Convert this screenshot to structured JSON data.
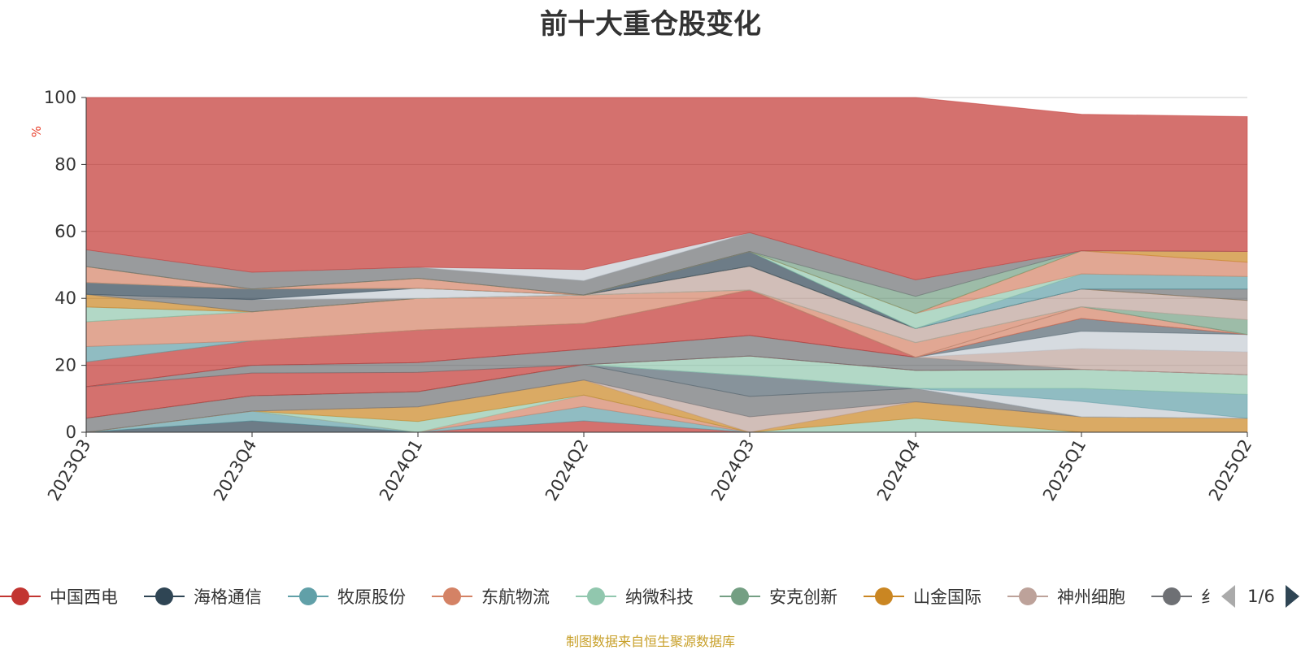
{
  "chart_data": {
    "type": "area",
    "title": "前十大重仓股变化",
    "ylabel": "%",
    "ylim": [
      0,
      100
    ],
    "yticks": [
      0,
      20,
      40,
      60,
      80,
      100
    ],
    "categories": [
      "2023Q3",
      "2023Q4",
      "2024Q1",
      "2024Q2",
      "2024Q3",
      "2024Q4",
      "2025Q1",
      "2025Q2"
    ],
    "stacked": true,
    "series": [
      {
        "name": "中国西电",
        "color": "#c23531",
        "values": [
          0,
          0,
          0,
          3.4,
          0,
          0,
          0,
          0
        ]
      },
      {
        "name": "海格通信",
        "color": "#2f4554",
        "values": [
          0,
          3.4,
          0,
          0,
          0,
          0,
          0,
          0
        ]
      },
      {
        "name": "牧原股份",
        "color": "#61a0a8",
        "values": [
          0,
          2.9,
          0,
          4.3,
          0,
          0,
          0,
          0
        ]
      },
      {
        "name": "东航物流",
        "color": "#d48265",
        "values": [
          0,
          0,
          0,
          3.4,
          0,
          0,
          0,
          0
        ]
      },
      {
        "name": "纳微科技",
        "color": "#91c7ae",
        "values": [
          0,
          0,
          3.2,
          0,
          0,
          4.2,
          0,
          0
        ]
      },
      {
        "name": "安克创新",
        "color": "#749f83",
        "values": [
          0,
          0,
          0,
          0,
          0,
          0,
          0,
          0
        ]
      },
      {
        "name": "山金国际",
        "color": "#ca8622",
        "values": [
          0,
          0,
          4.4,
          4.5,
          0,
          4.9,
          4.6,
          4.2
        ]
      },
      {
        "name": "神州细胞",
        "color": "#bda29a",
        "values": [
          0,
          0,
          0,
          0,
          4.6,
          0,
          0,
          0
        ]
      },
      {
        "name": "",
        "color": "#6e7074",
        "values": [
          4.2,
          4.6,
          4.5,
          4.6,
          6.1,
          4.0,
          0,
          0
        ]
      },
      {
        "name": "",
        "color": "#546570",
        "values": [
          9.6,
          7.0,
          5.8,
          5.0,
          6.2,
          0,
          0,
          0
        ]
      },
      {
        "name": "",
        "color": "#c4ccd3",
        "values": [
          0,
          0,
          0,
          0,
          0,
          0,
          4.6,
          0
        ]
      },
      {
        "name": "",
        "color": "#61a0a8",
        "values": [
          0,
          0,
          0,
          0,
          0,
          0,
          3.9,
          7.1
        ]
      },
      {
        "name": "",
        "color": "#91c7ae",
        "values": [
          0,
          0,
          0,
          0,
          12.2,
          5.4,
          5.7,
          5.9
        ]
      },
      {
        "name": "",
        "color": "#bda29a",
        "values": [
          0,
          0,
          0,
          0,
          0,
          3.9,
          6.7,
          6.8
        ]
      },
      {
        "name": "",
        "color": "#c4ccd3",
        "values": [
          0,
          0,
          0,
          0,
          0,
          0,
          5.3,
          5.2
        ]
      },
      {
        "name": "",
        "color": "#c23531",
        "values": [
          7.4,
          0,
          0,
          0,
          0,
          0,
          0,
          0
        ]
      },
      {
        "name": "",
        "color": "#546570",
        "values": [
          0,
          0,
          0,
          0,
          0,
          0,
          3.8,
          0
        ]
      },
      {
        "name": "",
        "color": "#61a0a8",
        "values": [
          4.6,
          0,
          0,
          0,
          0,
          0,
          0,
          0
        ]
      },
      {
        "name": "",
        "color": "#d48265",
        "values": [
          7.4,
          0,
          0,
          0,
          0,
          0,
          0,
          0
        ]
      },
      {
        "name": "",
        "color": "#91c7ae",
        "values": [
          4.4,
          0,
          0,
          0,
          0,
          0,
          0,
          0
        ]
      },
      {
        "name": "",
        "color": "#6e7074",
        "values": [
          0,
          0,
          0,
          0,
          0,
          0,
          0,
          0
        ]
      },
      {
        "name": "",
        "color": "#749f83",
        "values": [
          0,
          0,
          0,
          0,
          0,
          0,
          0,
          4.4
        ]
      },
      {
        "name": "",
        "color": "#ca8622",
        "values": [
          3.8,
          0,
          0,
          0,
          0,
          0,
          0,
          3.2
        ]
      },
      {
        "name": "",
        "color": "#c23531",
        "values": [
          0,
          0,
          0,
          0,
          9.2,
          0,
          0,
          0
        ]
      },
      {
        "name": "",
        "color": "#c4ccd3",
        "values": [
          0,
          0,
          0,
          0,
          0,
          0,
          0,
          0
        ]
      },
      {
        "name": "",
        "color": "#6e7074",
        "values": [
          0,
          0,
          0,
          0,
          0,
          0,
          0,
          0
        ]
      },
      {
        "name": "",
        "color": "#2f4554",
        "values": [
          3.5,
          0,
          0,
          0,
          0,
          0,
          0,
          0
        ]
      },
      {
        "name": "",
        "color": "#d48265",
        "values": [
          4.8,
          0,
          0,
          0,
          0,
          0,
          0,
          0
        ]
      },
      {
        "name": "",
        "color": "#6e7074",
        "values": [
          5.0,
          0,
          0,
          0,
          0,
          0,
          0,
          0
        ]
      },
      {
        "name": "",
        "color": "#c23531",
        "values": [
          45.3,
          0,
          0,
          0,
          0,
          0,
          0,
          0
        ]
      }
    ]
  },
  "bands": [
    {
      "color": "#c23531",
      "bottom": [
        0,
        0,
        0,
        0,
        0,
        0,
        0,
        0
      ],
      "top": [
        0,
        0,
        0,
        3.4,
        0,
        0,
        0,
        0
      ]
    },
    {
      "color": "#2f4554",
      "bottom": [
        0,
        0,
        0,
        0,
        0,
        0,
        0,
        0
      ],
      "top": [
        0,
        3.4,
        0,
        0,
        0,
        0,
        0,
        0
      ]
    },
    {
      "color": "#61a0a8",
      "bottom": [
        0,
        3.4,
        0,
        3.4,
        0,
        0,
        0,
        0
      ],
      "top": [
        0,
        6.3,
        0,
        7.7,
        0,
        0,
        0,
        0
      ]
    },
    {
      "color": "#d48265",
      "bottom": [
        0,
        6.3,
        0,
        7.7,
        0,
        0,
        0,
        0
      ],
      "top": [
        0,
        6.3,
        0,
        11.1,
        0,
        0,
        0,
        0
      ]
    },
    {
      "color": "#91c7ae",
      "bottom": [
        0,
        6.3,
        0,
        11.1,
        0,
        0,
        0,
        0
      ],
      "top": [
        0,
        6.3,
        3.2,
        11.1,
        0,
        4.2,
        0,
        0
      ]
    },
    {
      "color": "#ca8622",
      "bottom": [
        0,
        6.3,
        3.2,
        11.1,
        0,
        4.2,
        0,
        0
      ],
      "top": [
        0,
        6.3,
        7.6,
        15.6,
        0,
        9.1,
        4.6,
        4.2
      ]
    },
    {
      "color": "#bda29a",
      "bottom": [
        0,
        6.3,
        7.6,
        15.6,
        0,
        9.1,
        4.6,
        4.2
      ],
      "top": [
        0,
        6.3,
        7.6,
        15.6,
        4.6,
        9.1,
        4.6,
        4.2
      ]
    },
    {
      "color": "#6e7074",
      "bottom": [
        0,
        6.3,
        7.6,
        15.6,
        4.6,
        9.1,
        4.6,
        4.2
      ],
      "top": [
        4.2,
        10.9,
        12.1,
        20.2,
        10.7,
        13.1,
        4.6,
        4.2
      ]
    },
    {
      "color": "#546570",
      "bottom": [
        4.2,
        10.9,
        12.1,
        20.2,
        10.7,
        13.1,
        4.6,
        4.2
      ],
      "top": [
        4.2,
        10.9,
        12.1,
        20.2,
        16.9,
        13.1,
        4.6,
        4.2
      ]
    },
    {
      "color": "#c4ccd3",
      "bottom": [
        4.2,
        10.9,
        12.1,
        20.2,
        16.9,
        13.1,
        4.6,
        4.2
      ],
      "top": [
        4.2,
        10.9,
        12.1,
        20.2,
        16.9,
        13.1,
        9.2,
        4.2
      ]
    },
    {
      "color": "#61a0a8",
      "bottom": [
        4.2,
        10.9,
        12.1,
        20.2,
        16.9,
        13.1,
        9.2,
        4.2
      ],
      "top": [
        4.2,
        10.9,
        12.1,
        20.2,
        16.9,
        13.1,
        13.1,
        11.3
      ]
    },
    {
      "color": "#91c7ae",
      "bottom": [
        4.2,
        10.9,
        12.1,
        20.2,
        16.9,
        13.1,
        13.1,
        11.3
      ],
      "top": [
        4.2,
        10.9,
        12.1,
        20.2,
        22.8,
        18.5,
        18.8,
        17.2
      ]
    },
    {
      "color": "#6e7074",
      "bottom": [
        4.2,
        10.9,
        12.1,
        20.2,
        22.8,
        18.5,
        18.8,
        17.2
      ],
      "top": [
        4.2,
        10.9,
        12.1,
        20.2,
        22.8,
        18.5,
        18.8,
        17.2
      ]
    },
    {
      "color": "#c23531",
      "bottom": [
        4.2,
        10.9,
        12.1,
        20.2,
        22.8,
        18.5,
        18.8,
        17.2
      ],
      "top": [
        13.6,
        17.7,
        17.9,
        20.2,
        22.8,
        18.5,
        18.8,
        17.2
      ]
    },
    {
      "color": "#6e7074",
      "bottom": [
        13.6,
        17.7,
        17.9,
        20.2,
        22.8,
        18.5,
        18.8,
        17.2
      ],
      "top": [
        13.6,
        20.0,
        20.8,
        24.8,
        28.9,
        22.4,
        18.8,
        17.2
      ]
    },
    {
      "color": "#bda29a",
      "bottom": [
        13.6,
        20.0,
        20.8,
        24.8,
        28.9,
        22.4,
        18.8,
        17.2
      ],
      "top": [
        13.6,
        20.0,
        20.8,
        24.8,
        28.9,
        22.4,
        25.0,
        24.0
      ]
    },
    {
      "color": "#c4ccd3",
      "bottom": [
        13.6,
        20.0,
        20.8,
        24.8,
        28.9,
        22.4,
        25.0,
        24.0
      ],
      "top": [
        13.6,
        20.0,
        20.8,
        24.8,
        28.9,
        22.4,
        30.2,
        29.2
      ]
    },
    {
      "color": "#546570",
      "bottom": [
        13.6,
        20.0,
        20.8,
        24.8,
        28.9,
        22.4,
        30.2,
        29.2
      ],
      "top": [
        13.6,
        20.0,
        20.8,
        24.8,
        28.9,
        22.4,
        34.0,
        29.2
      ]
    },
    {
      "color": "#c23531",
      "bottom": [
        13.6,
        20.0,
        20.8,
        24.8,
        28.9,
        22.4,
        34.0,
        29.2
      ],
      "top": [
        21.0,
        27.3,
        30.5,
        32.5,
        42.5,
        22.4,
        34.0,
        29.2
      ]
    },
    {
      "color": "#d48265",
      "bottom": [
        21.0,
        27.3,
        30.5,
        32.5,
        42.5,
        22.4,
        34.0,
        29.2
      ],
      "top": [
        21.0,
        27.3,
        30.5,
        32.5,
        42.5,
        22.4,
        37.5,
        29.2
      ]
    },
    {
      "color": "#61a0a8",
      "bottom": [
        21.0,
        27.3,
        30.5,
        32.5,
        42.5,
        22.4,
        37.5,
        29.2
      ],
      "top": [
        25.6,
        27.3,
        30.5,
        32.5,
        42.5,
        22.4,
        37.5,
        29.2
      ]
    },
    {
      "color": "#d48265",
      "bottom": [
        25.6,
        27.3,
        30.5,
        32.5,
        42.5,
        22.4,
        37.5,
        29.2
      ],
      "top": [
        33.0,
        36.0,
        40.0,
        41.0,
        42.5,
        26.8,
        37.5,
        29.2
      ]
    },
    {
      "color": "#749f83",
      "bottom": [
        33.0,
        36.0,
        40.0,
        41.0,
        42.5,
        26.8,
        37.5,
        29.2
      ],
      "top": [
        33.0,
        36.0,
        40.0,
        41.0,
        42.5,
        26.8,
        37.5,
        33.6
      ]
    },
    {
      "color": "#91c7ae",
      "bottom": [
        33.0,
        36.0,
        40.0,
        41.0,
        42.5,
        26.8,
        37.5,
        33.6
      ],
      "top": [
        37.4,
        36.0,
        40.0,
        41.0,
        42.5,
        26.8,
        37.5,
        33.6
      ]
    },
    {
      "color": "#bda29a",
      "bottom": [
        37.4,
        36.0,
        40.0,
        41.0,
        42.5,
        26.8,
        37.5,
        33.6
      ],
      "top": [
        37.4,
        36.0,
        40.0,
        41.0,
        49.6,
        31.0,
        42.8,
        39.4
      ]
    },
    {
      "color": "#ca8622",
      "bottom": [
        37.4,
        36.0,
        40.0,
        41.0,
        49.6,
        31.0,
        42.8,
        39.4
      ],
      "top": [
        41.2,
        36.0,
        40.0,
        41.0,
        49.6,
        31.0,
        42.8,
        39.4
      ]
    },
    {
      "color": "#6e7074",
      "bottom": [
        41.2,
        36.0,
        40.0,
        41.0,
        49.6,
        31.0,
        42.8,
        39.4
      ],
      "top": [
        41.2,
        39.6,
        40.0,
        41.0,
        49.6,
        31.0,
        42.8,
        42.8
      ]
    },
    {
      "color": "#c4ccd3",
      "bottom": [
        41.2,
        39.6,
        40.0,
        41.0,
        49.6,
        31.0,
        42.8,
        42.8
      ],
      "top": [
        41.2,
        39.6,
        43.0,
        41.0,
        49.6,
        31.0,
        42.8,
        42.8
      ]
    },
    {
      "color": "#2f4554",
      "bottom": [
        41.2,
        39.6,
        43.0,
        41.0,
        49.6,
        31.0,
        42.8,
        42.8
      ],
      "top": [
        44.7,
        42.8,
        43.0,
        41.0,
        54.0,
        31.0,
        42.8,
        42.8
      ]
    },
    {
      "color": "#61a0a8",
      "bottom": [
        44.7,
        42.8,
        43.0,
        41.0,
        54.0,
        31.0,
        42.8,
        42.8
      ],
      "top": [
        44.7,
        42.8,
        43.0,
        41.0,
        54.0,
        31.0,
        47.3,
        46.5
      ]
    },
    {
      "color": "#91c7ae",
      "bottom": [
        44.7,
        42.8,
        43.0,
        41.0,
        54.0,
        31.0,
        47.3,
        46.5
      ],
      "top": [
        44.7,
        42.8,
        43.0,
        41.0,
        54.0,
        35.5,
        47.3,
        46.5
      ]
    },
    {
      "color": "#d48265",
      "bottom": [
        44.7,
        42.8,
        43.0,
        41.0,
        54.0,
        35.5,
        47.3,
        46.5
      ],
      "top": [
        49.5,
        42.8,
        46.0,
        41.0,
        54.0,
        35.5,
        54.2,
        50.8
      ]
    },
    {
      "color": "#ca8622",
      "bottom": [
        49.5,
        42.8,
        46.0,
        41.0,
        54.0,
        35.5,
        54.2,
        50.8
      ],
      "top": [
        49.5,
        42.8,
        46.0,
        41.0,
        54.0,
        35.5,
        54.2,
        54.0
      ]
    },
    {
      "color": "#749f83",
      "bottom": [
        49.5,
        42.8,
        46.0,
        41.0,
        54.0,
        35.5,
        54.2,
        54.0
      ],
      "top": [
        49.5,
        42.8,
        46.0,
        41.0,
        54.0,
        40.6,
        54.2,
        54.0
      ]
    },
    {
      "color": "#6e7074",
      "bottom": [
        49.5,
        42.8,
        46.0,
        41.0,
        54.0,
        40.6,
        54.2,
        54.0
      ],
      "top": [
        54.5,
        47.8,
        49.3,
        45.3,
        59.6,
        45.5,
        54.2,
        54.0
      ]
    },
    {
      "color": "#c4ccd3",
      "bottom": [
        54.5,
        47.8,
        49.3,
        45.3,
        59.6,
        45.5,
        54.2,
        54.0
      ],
      "top": [
        54.5,
        47.8,
        49.3,
        48.6,
        59.6,
        45.5,
        54.2,
        54.0
      ]
    },
    {
      "color": "#c23531",
      "bottom": [
        54.5,
        47.8,
        49.3,
        48.6,
        59.6,
        45.5,
        54.2,
        54.0
      ],
      "top": [
        100,
        100,
        100,
        100,
        100,
        100,
        95.0,
        94.3
      ]
    }
  ],
  "legend": {
    "page_text": "1/6",
    "items": [
      {
        "name": "中国西电",
        "color": "#c23531"
      },
      {
        "name": "海格通信",
        "color": "#2f4554"
      },
      {
        "name": "牧原股份",
        "color": "#61a0a8"
      },
      {
        "name": "东航物流",
        "color": "#d48265"
      },
      {
        "name": "纳微科技",
        "color": "#91c7ae"
      },
      {
        "name": "安克创新",
        "color": "#749f83"
      },
      {
        "name": "山金国际",
        "color": "#ca8622"
      },
      {
        "name": "神州细胞",
        "color": "#bda29a"
      },
      {
        "name": "纟",
        "color": "#6e7074"
      }
    ]
  },
  "footer": {
    "source": "制图数据来自恒生聚源数据库"
  }
}
